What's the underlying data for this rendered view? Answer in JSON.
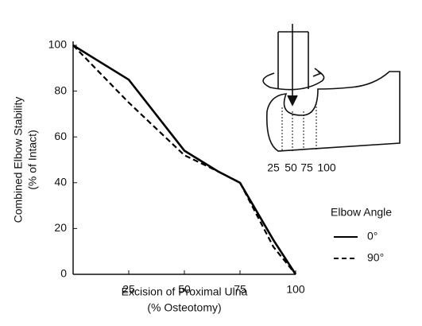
{
  "chart_data": {
    "type": "line",
    "ylabel": [
      "Combined Elbow Stability",
      "(% of Intact)"
    ],
    "xlabel": [
      "Excision of Proximal Ulna",
      "(% Osteotomy)"
    ],
    "x": [
      0,
      25,
      50,
      65,
      75,
      90,
      100
    ],
    "series": [
      {
        "name": "0°",
        "color": "#000000",
        "dash": "solid",
        "values": [
          100,
          85,
          54,
          45,
          40,
          15,
          0
        ]
      },
      {
        "name": "90°",
        "color": "#000000",
        "dash": "dashed",
        "values": [
          100,
          75,
          52,
          45,
          40,
          12,
          0
        ]
      }
    ],
    "xlim": [
      0,
      100
    ],
    "xticks": [
      25,
      50,
      75,
      100
    ],
    "ylim": [
      0,
      100
    ],
    "yticks": [
      0,
      20,
      40,
      60,
      80,
      100
    ],
    "grid": false,
    "legend_title": "Elbow Angle",
    "diagram_labels": [
      "25",
      "50",
      "75",
      "100"
    ]
  }
}
